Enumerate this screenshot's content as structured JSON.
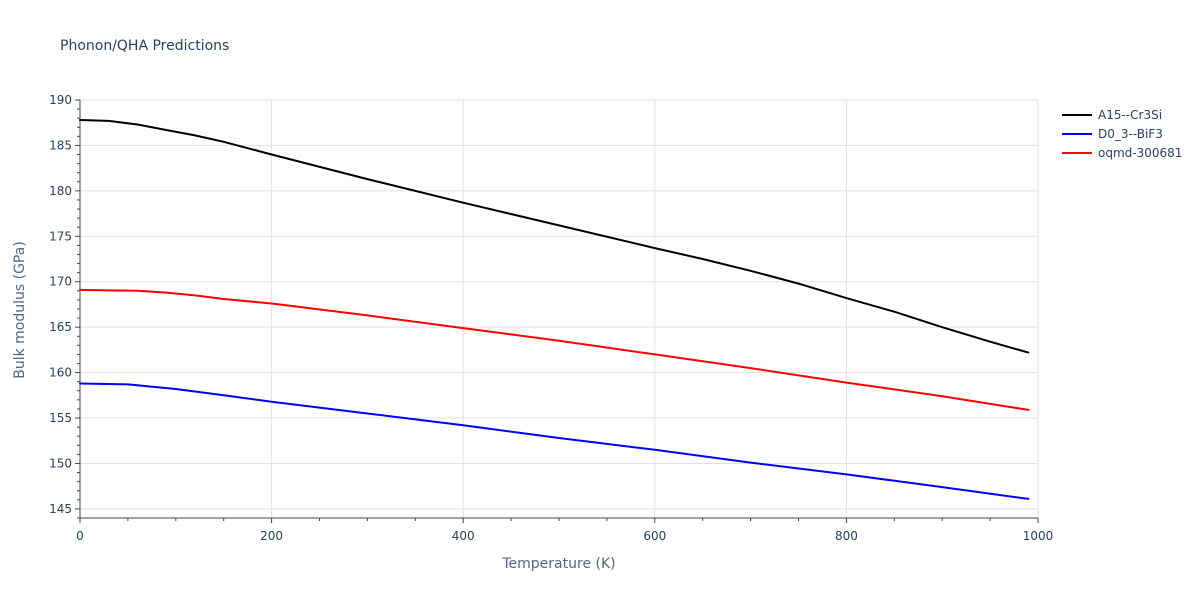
{
  "chart_data": {
    "type": "line",
    "title": "Phonon/QHA Predictions",
    "xlabel": "Temperature (K)",
    "ylabel": "Bulk modulus (GPa)",
    "xlim": [
      0,
      1000
    ],
    "ylim": [
      144,
      190
    ],
    "xticks": [
      0,
      200,
      400,
      600,
      800,
      1000
    ],
    "yticks": [
      145,
      150,
      155,
      160,
      165,
      170,
      175,
      180,
      185,
      190
    ],
    "grid": true,
    "legend_position": "top-right",
    "series": [
      {
        "name": "A15--Cr3Si",
        "color": "#000000",
        "x": [
          0,
          30,
          60,
          90,
          120,
          150,
          200,
          300,
          400,
          500,
          600,
          650,
          700,
          750,
          800,
          850,
          900,
          950,
          990
        ],
        "y": [
          187.8,
          187.7,
          187.3,
          186.7,
          186.1,
          185.4,
          184.0,
          181.3,
          178.7,
          176.2,
          173.7,
          172.5,
          171.2,
          169.8,
          168.2,
          166.7,
          165.0,
          163.4,
          162.2
        ]
      },
      {
        "name": "D0_3--BiF3",
        "color": "#0000ff",
        "x": [
          0,
          50,
          100,
          150,
          200,
          300,
          400,
          500,
          600,
          700,
          800,
          900,
          990
        ],
        "y": [
          158.8,
          158.7,
          158.2,
          157.5,
          156.8,
          155.5,
          154.2,
          152.8,
          151.5,
          150.1,
          148.8,
          147.4,
          146.1
        ]
      },
      {
        "name": "oqmd-300681",
        "color": "#ff0000",
        "x": [
          0,
          30,
          60,
          90,
          120,
          150,
          200,
          300,
          400,
          500,
          600,
          700,
          800,
          900,
          990
        ],
        "y": [
          169.1,
          169.05,
          169.0,
          168.8,
          168.5,
          168.1,
          167.6,
          166.3,
          164.9,
          163.5,
          162.0,
          160.5,
          158.9,
          157.4,
          155.9
        ]
      }
    ]
  }
}
